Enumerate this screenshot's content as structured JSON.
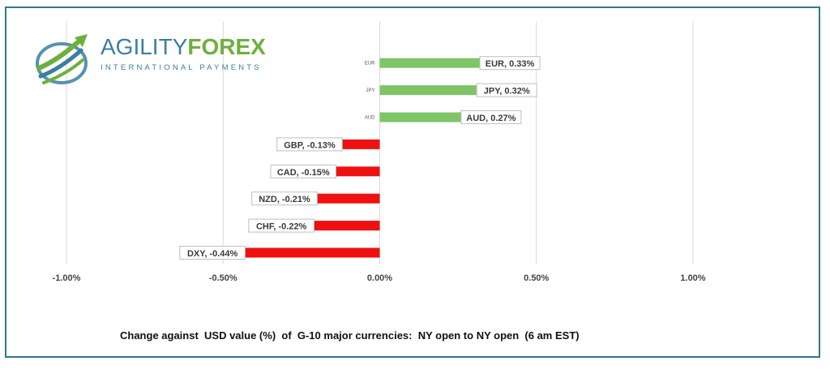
{
  "logo": {
    "word1": "AGILITY",
    "word2": "FOREX",
    "subtitle": "INTERNATIONAL PAYMENTS"
  },
  "colors": {
    "positive": "#7dc567",
    "negative": "#ee1111",
    "grid": "#d9d9d9",
    "frame": "#2c7a8a"
  },
  "chart_data": {
    "type": "bar",
    "orientation": "horizontal",
    "title": "Change against  USD value (%)  of  G-10 major currencies:  NY open to NY open  (6 am EST)",
    "categories": [
      "EUR",
      "JPY",
      "AUD",
      "GBP",
      "CAD",
      "NZD",
      "CHF",
      "DXY"
    ],
    "values": [
      0.33,
      0.32,
      0.27,
      -0.13,
      -0.15,
      -0.21,
      -0.22,
      -0.44
    ],
    "data_labels": [
      "EUR, 0.33%",
      "JPY, 0.32%",
      "AUD, 0.27%",
      "GBP, -0.13%",
      "CAD, -0.15%",
      "NZD, -0.21%",
      "CHF, -0.22%",
      "DXY, -0.44%"
    ],
    "x_ticks": [
      -1.0,
      -0.5,
      0.0,
      0.5,
      1.0
    ],
    "x_tick_labels": [
      "-1.00%",
      "-0.50%",
      "0.00%",
      "0.50%",
      "1.00%"
    ],
    "xlim": [
      -1.0,
      1.0
    ],
    "grid": true,
    "legend": "none"
  }
}
